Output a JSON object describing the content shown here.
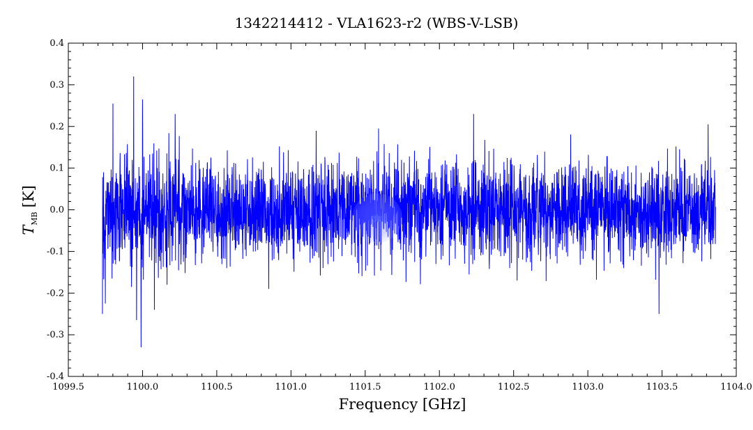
{
  "chart_data": {
    "type": "line",
    "title": "1342214412 - VLA1623-r2 (WBS-V-LSB)",
    "xlabel": "Frequency [GHz]",
    "ylabel": {
      "symbol": "T",
      "subscript": "MB",
      "unit": "[K]"
    },
    "xlim": [
      1099.5,
      1104.0
    ],
    "ylim": [
      -0.4,
      0.4
    ],
    "xticks": [
      "1099.5",
      "1100.0",
      "1100.5",
      "1101.0",
      "1101.5",
      "1102.0",
      "1102.5",
      "1103.0",
      "1103.5",
      "1104.0"
    ],
    "yticks": [
      "-0.4",
      "-0.3",
      "-0.2",
      "-0.1",
      "0.0",
      "0.1",
      "0.2",
      "0.3",
      "0.4"
    ],
    "grid": false,
    "series": [
      {
        "color": "#0000ff",
        "x_start": 1099.73,
        "x_end": 1103.86,
        "noise_rms": 0.055,
        "spikes": [
          {
            "x": 1099.73,
            "y": -0.25
          },
          {
            "x": 1099.75,
            "y": -0.225
          },
          {
            "x": 1099.8,
            "y": 0.255
          },
          {
            "x": 1099.94,
            "y": 0.32
          },
          {
            "x": 1099.96,
            "y": -0.265
          },
          {
            "x": 1099.99,
            "y": -0.33
          },
          {
            "x": 1100.0,
            "y": 0.265
          },
          {
            "x": 1100.08,
            "y": -0.24
          },
          {
            "x": 1100.22,
            "y": 0.23
          },
          {
            "x": 1100.85,
            "y": -0.19
          },
          {
            "x": 1101.59,
            "y": 0.195
          },
          {
            "x": 1102.23,
            "y": 0.23
          },
          {
            "x": 1103.48,
            "y": -0.25
          },
          {
            "x": 1103.81,
            "y": 0.205
          }
        ]
      }
    ],
    "marker": {
      "x": 1101.58,
      "y": -0.02,
      "label": "line-marker"
    }
  }
}
